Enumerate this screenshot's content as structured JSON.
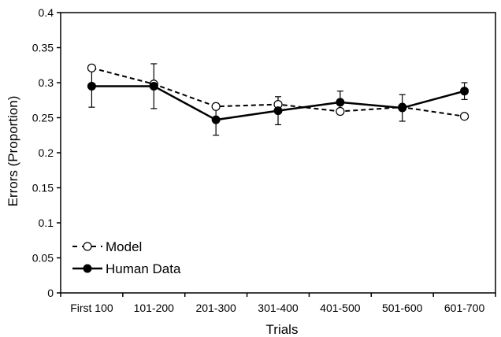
{
  "chart_data": {
    "type": "line",
    "title": "",
    "xlabel": "Trials",
    "ylabel": "Errors (Proportion)",
    "categories": [
      "First 100",
      "101-200",
      "201-300",
      "301-400",
      "401-500",
      "501-600",
      "601-700"
    ],
    "ylim": [
      0,
      0.4
    ],
    "yticks": [
      "0",
      "0.05",
      "0.1",
      "0.15",
      "0.2",
      "0.25",
      "0.3",
      "0.35",
      "0.4"
    ],
    "grid": false,
    "legend_position": "bottom-left",
    "series": [
      {
        "name": "Model",
        "style": "dashed line, open circle markers",
        "values": [
          0.321,
          0.298,
          0.266,
          0.269,
          0.259,
          0.265,
          0.252
        ]
      },
      {
        "name": "Human Data",
        "style": "solid line, filled circle markers, error bars",
        "values": [
          0.295,
          0.295,
          0.247,
          0.26,
          0.272,
          0.264,
          0.288
        ],
        "error": [
          0.03,
          0.032,
          0.022,
          0.02,
          0.016,
          0.019,
          0.012
        ]
      }
    ]
  }
}
